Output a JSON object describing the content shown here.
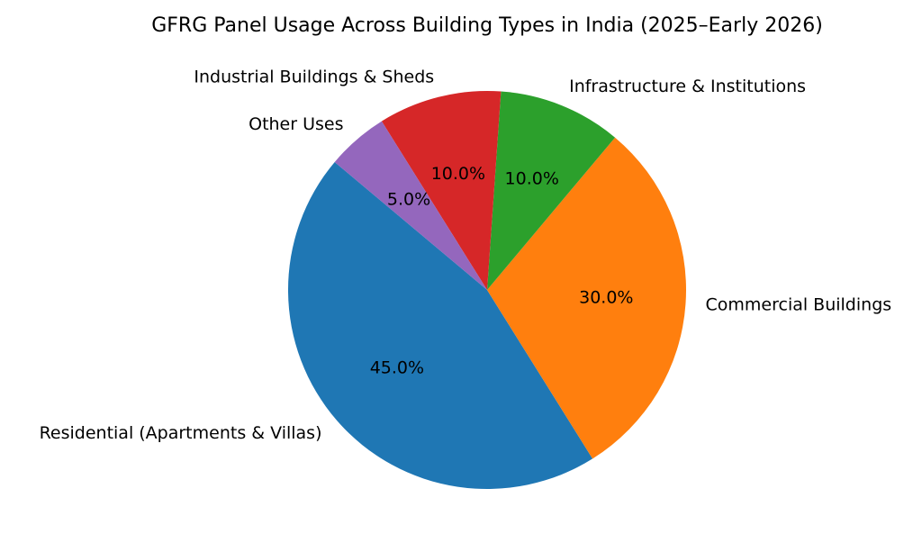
{
  "chart_data": {
    "type": "pie",
    "title": "GFRG Panel Usage Across Building Types in India (2025–Early 2026)",
    "categories": [
      "Residential (Apartments & Villas)",
      "Commercial Buildings",
      "Infrastructure & Institutions",
      "Industrial Buildings & Sheds",
      "Other Uses"
    ],
    "values": [
      45,
      30,
      10,
      10,
      5
    ],
    "percent_labels": [
      "45.0%",
      "30.0%",
      "10.0%",
      "10.0%",
      "5.0%"
    ],
    "colors": [
      "#1f77b4",
      "#ff7f0e",
      "#2ca02c",
      "#d62728",
      "#9467bd"
    ],
    "start_angle_deg": 140,
    "direction": "counterclockwise",
    "legend": "none",
    "label_placement": "outside slices, percentages inside"
  }
}
